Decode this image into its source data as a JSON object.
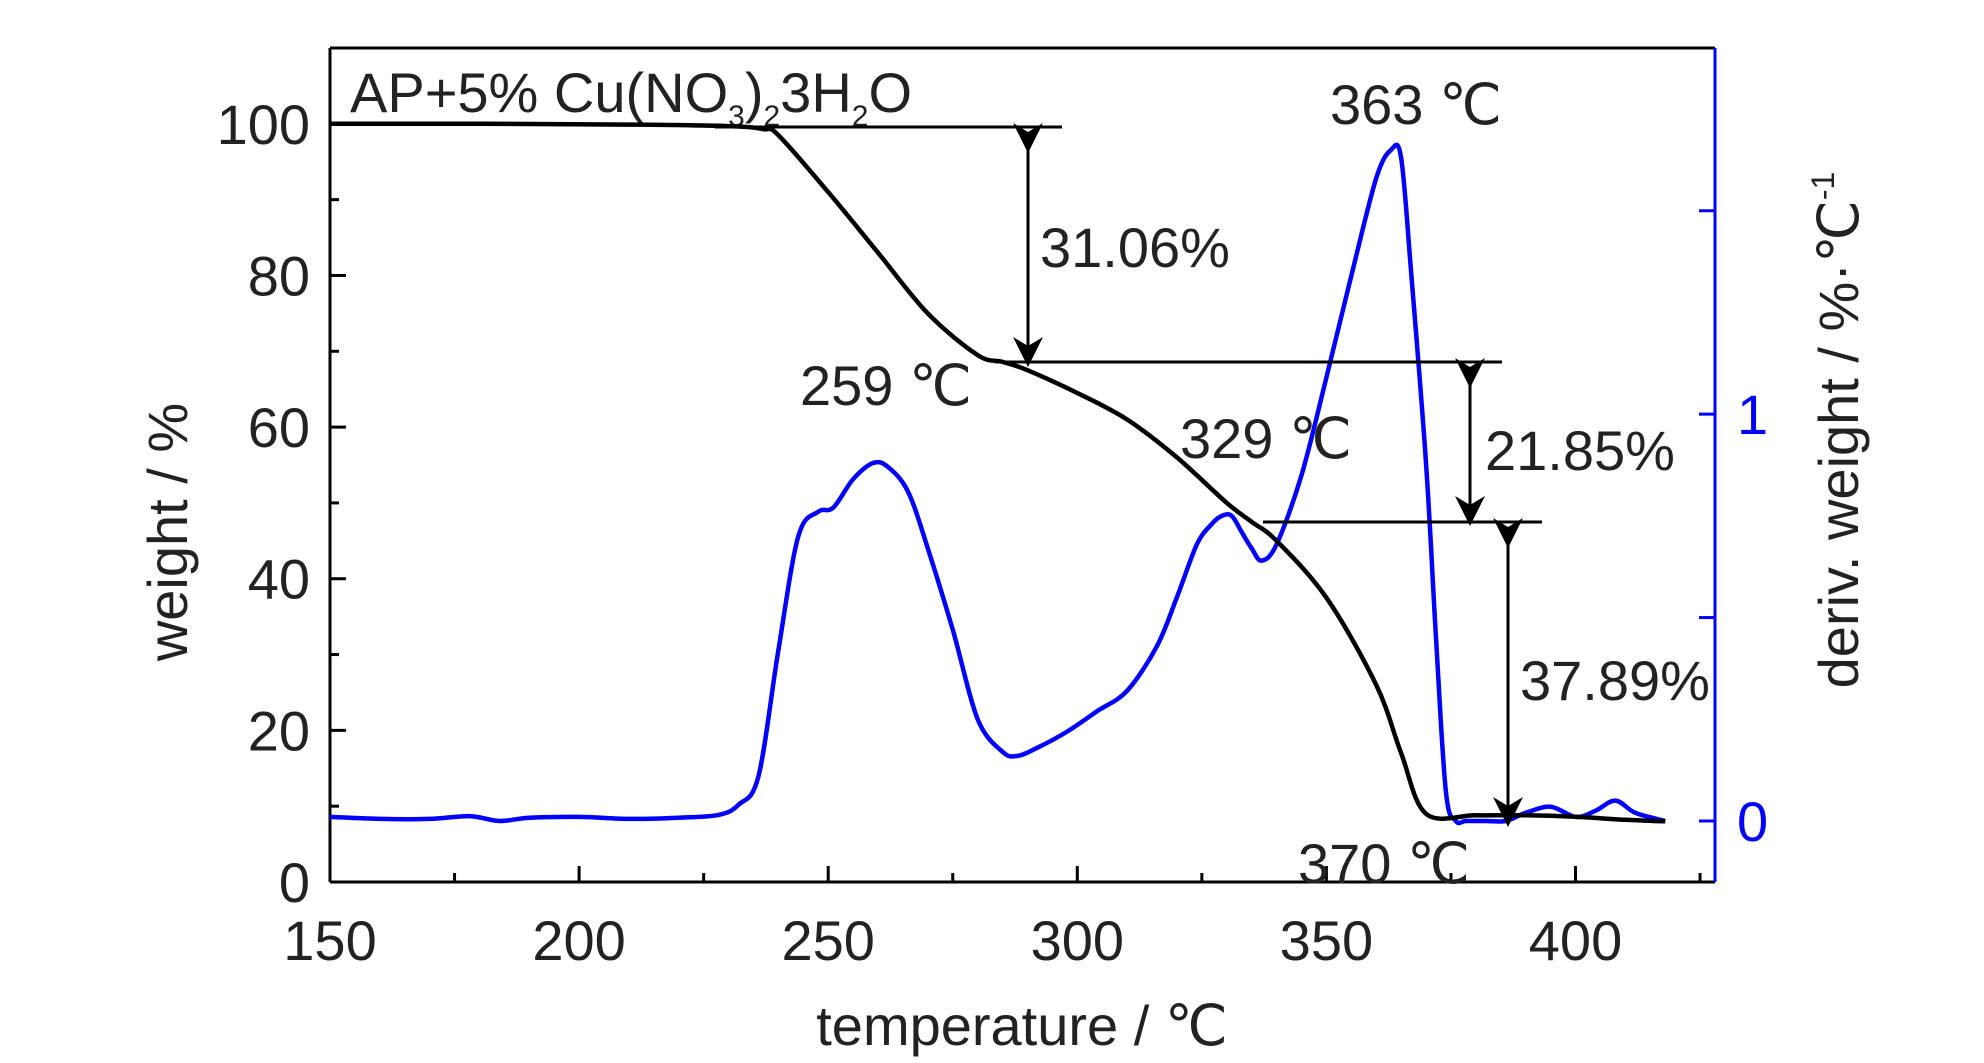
{
  "chart_data": {
    "type": "line",
    "title": "AP+5% Cu(NO3)23H2O",
    "title_parts": [
      "AP+5% Cu(NO",
      "3",
      ")",
      "2",
      "3H",
      "2",
      "O"
    ],
    "xlabel": "temperature / ℃",
    "ylabel": "weight / %",
    "y2label_main": "deriv. weight / %·℃",
    "y2label_sup": "-1",
    "xlim": [
      150,
      428
    ],
    "ylim": [
      0,
      110
    ],
    "y2lim": [
      -0.15,
      1.9
    ],
    "x_ticks": [
      150,
      200,
      250,
      300,
      350,
      400
    ],
    "y_ticks": [
      0,
      20,
      40,
      60,
      80,
      100
    ],
    "y2_tick_labels": [
      0,
      1
    ],
    "y2_ticks_minor": [
      0.5,
      1.5
    ],
    "colors": {
      "weight": "#000000",
      "deriv": "#0000ff",
      "axis": "#000000",
      "right_axis": "#0000ff"
    },
    "series": [
      {
        "name": "weight",
        "axis": "left",
        "x": [
          150,
          180,
          210,
          230,
          237,
          240,
          250,
          260,
          270,
          280,
          285,
          290,
          300,
          310,
          320,
          330,
          335,
          340,
          350,
          360,
          365,
          370,
          380,
          390,
          400,
          410,
          418
        ],
        "y": [
          100,
          100,
          99.9,
          99.7,
          99.3,
          98.5,
          91,
          83,
          75,
          69.5,
          68.6,
          67.5,
          64.5,
          61,
          56,
          50,
          47.5,
          45,
          37.5,
          26,
          17,
          9,
          8.8,
          8.8,
          8.6,
          8.2,
          8.0
        ]
      },
      {
        "name": "deriv",
        "axis": "right",
        "x": [
          150,
          160,
          170,
          178,
          184,
          190,
          200,
          210,
          220,
          228,
          232,
          236,
          240,
          244,
          248,
          251,
          255,
          259,
          262,
          266,
          270,
          275,
          280,
          285,
          288,
          292,
          298,
          304,
          310,
          316,
          320,
          324,
          327,
          329,
          331,
          333,
          335,
          337,
          340,
          345,
          350,
          355,
          360,
          363,
          365,
          367,
          370,
          372,
          374,
          376,
          378,
          382,
          386,
          390,
          395,
          400,
          404,
          408,
          412,
          418
        ],
        "y": [
          0.01,
          0.005,
          0.005,
          0.012,
          0.0,
          0.008,
          0.01,
          0.005,
          0.008,
          0.015,
          0.04,
          0.11,
          0.42,
          0.7,
          0.76,
          0.77,
          0.84,
          0.88,
          0.87,
          0.81,
          0.67,
          0.47,
          0.25,
          0.17,
          0.16,
          0.18,
          0.22,
          0.27,
          0.32,
          0.43,
          0.55,
          0.68,
          0.73,
          0.75,
          0.75,
          0.71,
          0.67,
          0.64,
          0.68,
          0.85,
          1.09,
          1.34,
          1.58,
          1.65,
          1.63,
          1.35,
          0.88,
          0.45,
          0.07,
          0.0,
          0.0,
          0.0,
          0.0,
          0.02,
          0.035,
          0.01,
          0.025,
          0.05,
          0.02,
          0.0
        ]
      }
    ],
    "annotations": {
      "peak_259": "259 ℃",
      "peak_329": "329 ℃",
      "peak_363": "363 ℃",
      "end_370": "370 ℃",
      "loss_1": "31.06%",
      "loss_2": "21.85%",
      "loss_3": "37.89%"
    }
  }
}
